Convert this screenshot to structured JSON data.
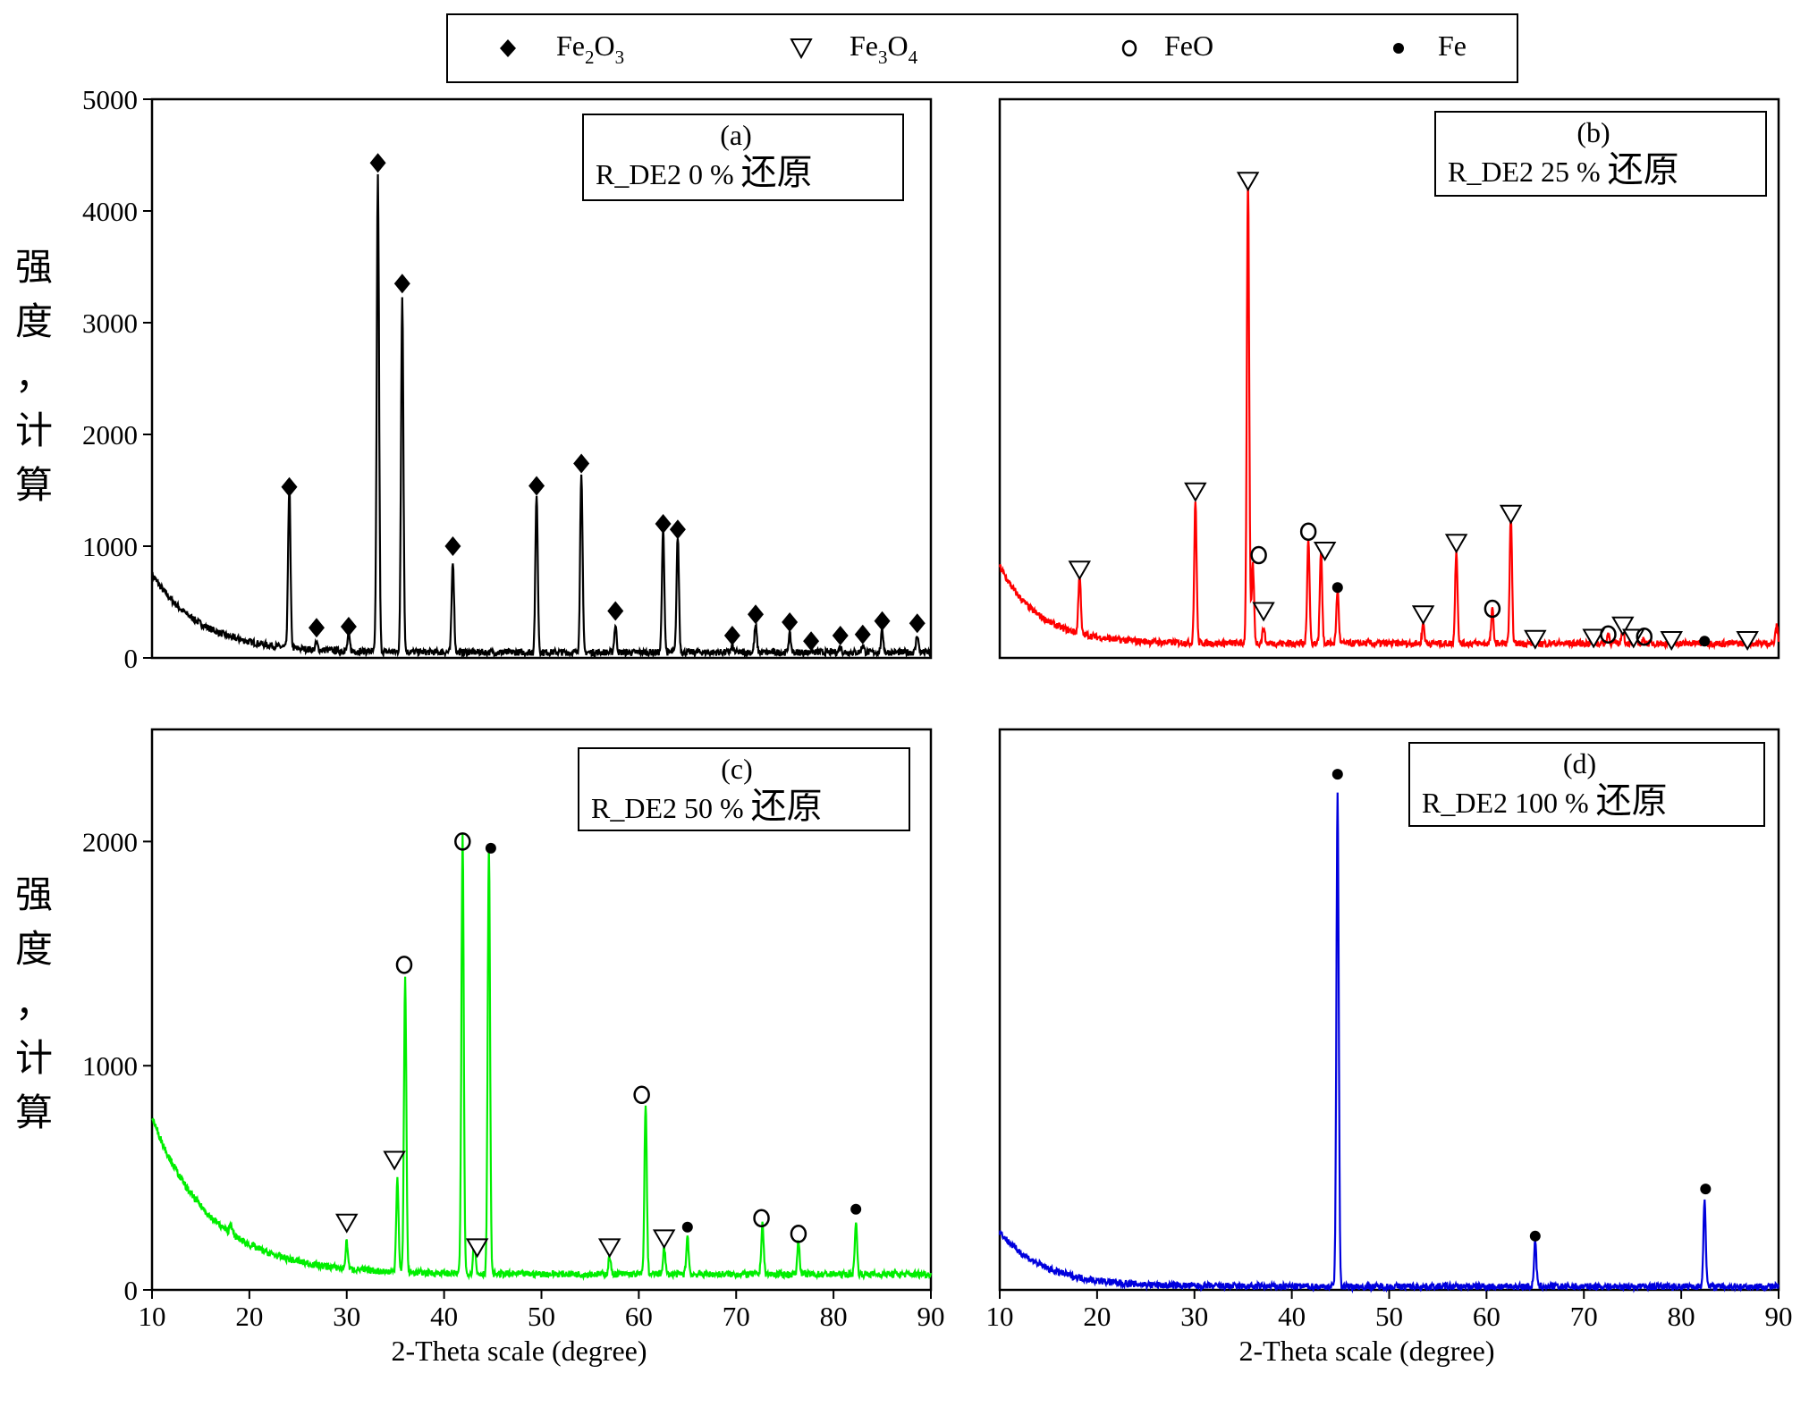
{
  "legend": [
    {
      "symbol": "◆",
      "label": "Fe₂O₃",
      "icon": "filled-diamond-icon"
    },
    {
      "symbol": "▽",
      "label": "Fe₃O₄",
      "icon": "open-triangle-icon"
    },
    {
      "symbol": "o",
      "label": "FeO",
      "icon": "open-circle-icon"
    },
    {
      "symbol": "●",
      "label": "Fe",
      "icon": "filled-dot-icon"
    }
  ],
  "chart_data": [
    {
      "type": "line",
      "panel_label": "(a)",
      "title": "R_DE2 0 % 还原",
      "xlabel": "",
      "ylabel": "强度，计算",
      "xlim": [
        10,
        90
      ],
      "ylim": [
        0,
        5000
      ],
      "y_ticks": [
        0,
        1000,
        2000,
        3000,
        4000,
        5000
      ],
      "x_ticks": [],
      "color": "#000000",
      "series": [
        {
          "baseline": {
            "start": 750,
            "decay": 5.0,
            "floor": 50
          },
          "peaks": [
            [
              24.1,
              1450
            ],
            [
              26.9,
              60
            ],
            [
              30.2,
              140
            ],
            [
              33.2,
              4250
            ],
            [
              35.7,
              3180
            ],
            [
              40.9,
              820
            ],
            [
              49.5,
              1420
            ],
            [
              54.1,
              1620
            ],
            [
              57.6,
              240
            ],
            [
              62.5,
              1100
            ],
            [
              64.0,
              1040
            ],
            [
              69.6,
              50
            ],
            [
              72.0,
              240
            ],
            [
              75.5,
              160
            ],
            [
              77.7,
              20
            ],
            [
              80.7,
              50
            ],
            [
              83.0,
              70
            ],
            [
              85.0,
              190
            ],
            [
              88.6,
              160
            ]
          ]
        }
      ],
      "markers": [
        {
          "x": 24.1,
          "y": 1530,
          "m": "diamond"
        },
        {
          "x": 26.9,
          "y": 270,
          "m": "diamond"
        },
        {
          "x": 30.2,
          "y": 280,
          "m": "diamond"
        },
        {
          "x": 33.2,
          "y": 4430,
          "m": "diamond"
        },
        {
          "x": 35.7,
          "y": 3350,
          "m": "diamond"
        },
        {
          "x": 40.9,
          "y": 1000,
          "m": "diamond"
        },
        {
          "x": 49.5,
          "y": 1540,
          "m": "diamond"
        },
        {
          "x": 54.1,
          "y": 1740,
          "m": "diamond"
        },
        {
          "x": 57.6,
          "y": 420,
          "m": "diamond"
        },
        {
          "x": 62.5,
          "y": 1200,
          "m": "diamond"
        },
        {
          "x": 64.0,
          "y": 1150,
          "m": "diamond"
        },
        {
          "x": 69.6,
          "y": 200,
          "m": "diamond"
        },
        {
          "x": 72.0,
          "y": 390,
          "m": "diamond"
        },
        {
          "x": 75.5,
          "y": 320,
          "m": "diamond"
        },
        {
          "x": 77.7,
          "y": 150,
          "m": "diamond"
        },
        {
          "x": 80.7,
          "y": 200,
          "m": "diamond"
        },
        {
          "x": 83.0,
          "y": 210,
          "m": "diamond"
        },
        {
          "x": 85.0,
          "y": 330,
          "m": "diamond"
        },
        {
          "x": 88.6,
          "y": 310,
          "m": "diamond"
        }
      ]
    },
    {
      "type": "line",
      "panel_label": "(b)",
      "title": "R_DE2 25 % 还原",
      "xlabel": "",
      "ylabel": "",
      "xlim": [
        10,
        90
      ],
      "ylim": [
        0,
        5000
      ],
      "y_ticks": [],
      "x_ticks": [],
      "color": "#ff0000",
      "series": [
        {
          "baseline": {
            "start": 820,
            "decay": 4.0,
            "floor": 130
          },
          "peaks": [
            [
              18.2,
              530
            ],
            [
              30.1,
              1270
            ],
            [
              35.5,
              4150
            ],
            [
              36.0,
              700
            ],
            [
              37.1,
              140
            ],
            [
              41.7,
              950
            ],
            [
              43.0,
              830
            ],
            [
              44.7,
              480
            ],
            [
              53.5,
              180
            ],
            [
              56.9,
              840
            ],
            [
              60.6,
              300
            ],
            [
              62.5,
              1120
            ],
            [
              65.0,
              20
            ],
            [
              71.0,
              30
            ],
            [
              72.5,
              90
            ],
            [
              74.0,
              150
            ],
            [
              75.4,
              40
            ],
            [
              76.2,
              40
            ],
            [
              79.0,
              20
            ],
            [
              82.4,
              40
            ],
            [
              89.8,
              150
            ]
          ]
        }
      ],
      "markers": [
        {
          "x": 18.2,
          "y": 790,
          "m": "triangle"
        },
        {
          "x": 30.1,
          "y": 1490,
          "m": "triangle"
        },
        {
          "x": 35.5,
          "y": 4270,
          "m": "triangle"
        },
        {
          "x": 36.6,
          "y": 920,
          "m": "circle"
        },
        {
          "x": 37.1,
          "y": 420,
          "m": "triangle"
        },
        {
          "x": 41.7,
          "y": 1130,
          "m": "circle"
        },
        {
          "x": 43.4,
          "y": 960,
          "m": "triangle"
        },
        {
          "x": 44.7,
          "y": 630,
          "m": "dot"
        },
        {
          "x": 53.5,
          "y": 390,
          "m": "triangle"
        },
        {
          "x": 60.6,
          "y": 440,
          "m": "circle"
        },
        {
          "x": 56.9,
          "y": 1030,
          "m": "triangle"
        },
        {
          "x": 62.5,
          "y": 1290,
          "m": "triangle"
        },
        {
          "x": 65.0,
          "y": 170,
          "m": "triangle"
        },
        {
          "x": 71.0,
          "y": 180,
          "m": "triangle"
        },
        {
          "x": 72.5,
          "y": 210,
          "m": "circle"
        },
        {
          "x": 74.0,
          "y": 290,
          "m": "triangle"
        },
        {
          "x": 75.1,
          "y": 180,
          "m": "triangle"
        },
        {
          "x": 76.2,
          "y": 190,
          "m": "circle"
        },
        {
          "x": 79.0,
          "y": 160,
          "m": "triangle"
        },
        {
          "x": 82.4,
          "y": 150,
          "m": "dot"
        },
        {
          "x": 86.8,
          "y": 160,
          "m": "triangle"
        }
      ]
    },
    {
      "type": "line",
      "panel_label": "(c)",
      "title": "R_DE2 50 % 还原",
      "xlabel": "2-Theta scale (degree)",
      "ylabel": "强度，计算",
      "xlim": [
        10,
        90
      ],
      "ylim": [
        0,
        2500
      ],
      "y_ticks": [
        0,
        1000,
        2000
      ],
      "x_ticks": [
        10,
        20,
        30,
        40,
        50,
        60,
        70,
        80,
        90
      ],
      "color": "#00ee00",
      "series": [
        {
          "baseline": {
            "start": 770,
            "decay": 6.0,
            "floor": 70
          },
          "peaks": [
            [
              18.1,
              50
            ],
            [
              30.0,
              120
            ],
            [
              35.2,
              420
            ],
            [
              36.0,
              1310
            ],
            [
              41.9,
              1950
            ],
            [
              43.1,
              150
            ],
            [
              44.6,
              1900
            ],
            [
              57.0,
              80
            ],
            [
              60.7,
              760
            ],
            [
              62.6,
              120
            ],
            [
              65.0,
              170
            ],
            [
              72.7,
              230
            ],
            [
              76.4,
              150
            ],
            [
              82.3,
              230
            ]
          ]
        }
      ],
      "markers": [
        {
          "x": 30.0,
          "y": 300,
          "m": "triangle"
        },
        {
          "x": 34.9,
          "y": 580,
          "m": "triangle"
        },
        {
          "x": 35.9,
          "y": 1450,
          "m": "circle"
        },
        {
          "x": 41.9,
          "y": 2000,
          "m": "circle"
        },
        {
          "x": 43.4,
          "y": 190,
          "m": "triangle"
        },
        {
          "x": 44.8,
          "y": 1970,
          "m": "dot"
        },
        {
          "x": 57.0,
          "y": 190,
          "m": "triangle"
        },
        {
          "x": 60.3,
          "y": 870,
          "m": "circle"
        },
        {
          "x": 62.6,
          "y": 230,
          "m": "triangle"
        },
        {
          "x": 65.0,
          "y": 280,
          "m": "dot"
        },
        {
          "x": 72.6,
          "y": 320,
          "m": "circle"
        },
        {
          "x": 76.4,
          "y": 250,
          "m": "circle"
        },
        {
          "x": 82.3,
          "y": 360,
          "m": "dot"
        }
      ]
    },
    {
      "type": "line",
      "panel_label": "(d)",
      "title": "R_DE2 100 % 还原",
      "xlabel": "2-Theta scale (degree)",
      "ylabel": "",
      "xlim": [
        10,
        90
      ],
      "ylim": [
        0,
        2500
      ],
      "y_ticks": [],
      "x_ticks": [
        10,
        20,
        30,
        40,
        50,
        60,
        70,
        80,
        90
      ],
      "color": "#0000dd",
      "series": [
        {
          "baseline": {
            "start": 260,
            "decay": 4.5,
            "floor": 15
          },
          "peaks": [
            [
              44.7,
              2200
            ],
            [
              65.0,
              200
            ],
            [
              82.4,
              390
            ]
          ]
        }
      ],
      "markers": [
        {
          "x": 44.7,
          "y": 2300,
          "m": "dot"
        },
        {
          "x": 65.0,
          "y": 240,
          "m": "dot"
        },
        {
          "x": 82.5,
          "y": 450,
          "m": "dot"
        }
      ]
    }
  ]
}
